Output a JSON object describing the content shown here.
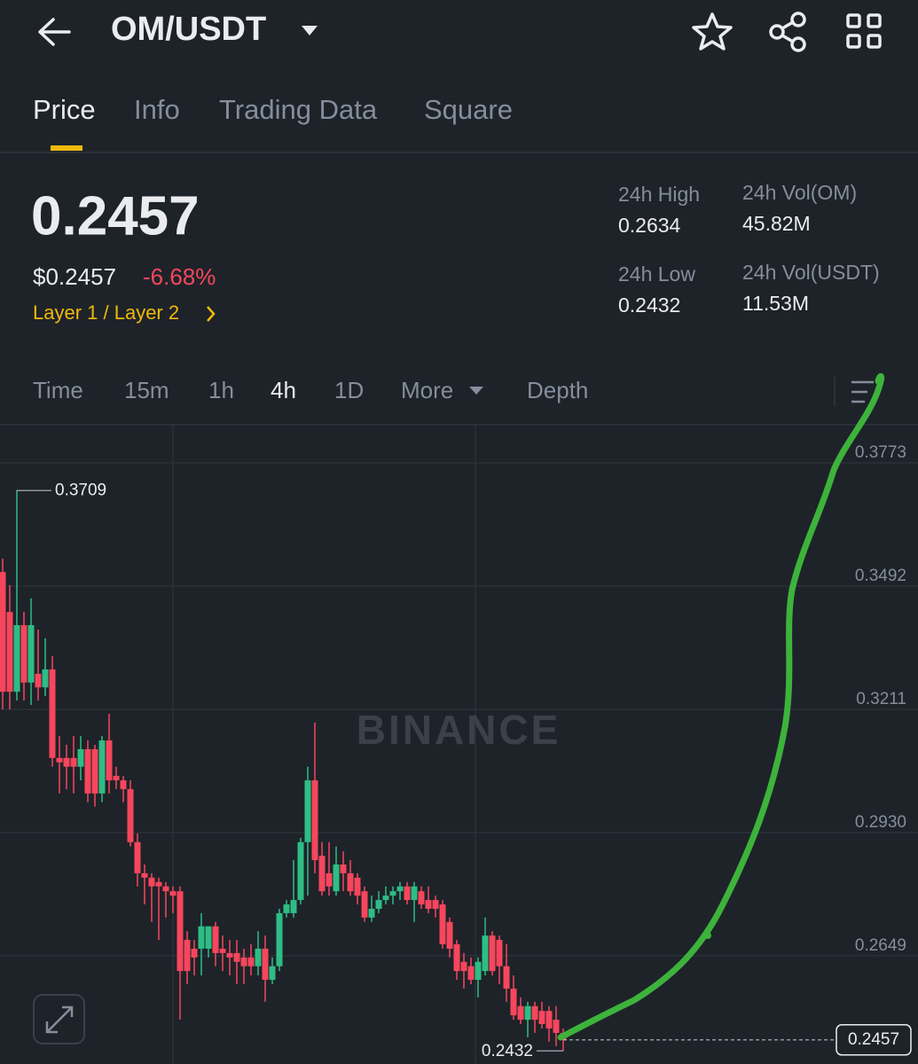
{
  "header": {
    "pair": "OM/USDT"
  },
  "tabs": [
    "Price",
    "Info",
    "Trading Data",
    "Square"
  ],
  "ticker": {
    "price": "0.2457",
    "usd_price": "$0.2457",
    "change": "-6.68%",
    "tag": "Layer 1 / Layer 2",
    "stats": [
      {
        "label": "24h High",
        "value": "0.2634"
      },
      {
        "label": "24h Vol(OM)",
        "value": "45.82M"
      },
      {
        "label": "24h Low",
        "value": "0.2432"
      },
      {
        "label": "24h Vol(USDT)",
        "value": "11.53M"
      }
    ]
  },
  "intervals": [
    "Time",
    "15m",
    "1h",
    "4h",
    "1D",
    "More",
    "Depth"
  ],
  "watermark": "BINANCE",
  "chart_data": {
    "type": "candlestick",
    "up_color": "#2ebd85",
    "down_color": "#f6465d",
    "grid": true,
    "ylim": [
      0.2402,
      0.3858
    ],
    "yticks": [
      0.3773,
      0.3492,
      0.3211,
      {
        "value": 0.293,
        "label": "0.2930"
      },
      0.2649
    ],
    "high_label": 0.3709,
    "low_label": 0.2432,
    "last_price": 0.2457,
    "open": [
      0.3524,
      0.3433,
      0.3251,
      0.3403,
      0.3272,
      0.3292,
      0.3261,
      0.3302,
      0.31,
      0.31,
      0.31,
      0.308,
      0.312,
      0.312,
      0.3019,
      0.314,
      0.3059,
      0.3049,
      0.3029,
      0.2908,
      0.2837,
      0.2827,
      0.2817,
      0.2807,
      0.2796,
      0.2796,
      0.2685,
      0.2665,
      0.2665,
      0.2665,
      0.2716,
      0.2665,
      0.2655,
      0.2655,
      0.2645,
      0.2645,
      0.2625,
      0.2665,
      0.2594,
      0.2625,
      0.2746,
      0.2746,
      0.2776,
      0.2908,
      0.3049,
      0.2877,
      0.2837,
      0.2796,
      0.2857,
      0.2837,
      0.2827,
      0.2796,
      0.2736,
      0.2756,
      0.2776,
      0.2786,
      0.2796,
      0.2807,
      0.2776,
      0.2796,
      0.2776,
      0.2776,
      0.2766,
      0.2726,
      0.2675,
      0.2635,
      0.2625,
      0.2594,
      0.2614,
      0.2695,
      0.2685,
      0.2625,
      0.2574,
      0.2534,
      0.2503,
      0.2534,
      0.2523,
      0.2523,
      0.2503,
      0.2473
    ],
    "high": [
      0.3555,
      0.3494,
      0.3709,
      0.3433,
      0.3464,
      0.3393,
      0.3373,
      0.3332,
      0.315,
      0.313,
      0.315,
      0.315,
      0.314,
      0.313,
      0.315,
      0.3201,
      0.308,
      0.3059,
      0.3049,
      0.2928,
      0.2857,
      0.2837,
      0.2827,
      0.2817,
      0.2807,
      0.2807,
      0.2705,
      0.2685,
      0.2746,
      0.2716,
      0.2726,
      0.2695,
      0.2685,
      0.2685,
      0.2665,
      0.2675,
      0.2705,
      0.2695,
      0.2645,
      0.2756,
      0.2776,
      0.2867,
      0.2918,
      0.308,
      0.3181,
      0.2908,
      0.2908,
      0.2898,
      0.2887,
      0.2867,
      0.2837,
      0.2807,
      0.2786,
      0.2796,
      0.2807,
      0.2807,
      0.2817,
      0.2817,
      0.2817,
      0.2807,
      0.2807,
      0.2786,
      0.2776,
      0.2736,
      0.2685,
      0.2655,
      0.2645,
      0.2645,
      0.2736,
      0.2705,
      0.2695,
      0.2675,
      0.2604,
      0.2554,
      0.2544,
      0.2544,
      0.2544,
      0.2534,
      0.2534,
      0.2483
    ],
    "low": [
      0.3211,
      0.3211,
      0.3231,
      0.3231,
      0.3221,
      0.3231,
      0.3241,
      0.308,
      0.3019,
      0.3029,
      0.3019,
      0.3049,
      0.2999,
      0.2989,
      0.2999,
      0.3019,
      0.3029,
      0.2999,
      0.2898,
      0.2807,
      0.2766,
      0.2726,
      0.2685,
      0.2736,
      0.2746,
      0.2503,
      0.2584,
      0.2604,
      0.2604,
      0.2645,
      0.2625,
      0.2614,
      0.2604,
      0.2584,
      0.2584,
      0.2604,
      0.2604,
      0.2544,
      0.2584,
      0.2614,
      0.2736,
      0.2736,
      0.2766,
      0.2786,
      0.2837,
      0.2786,
      0.2786,
      0.2786,
      0.2796,
      0.2786,
      0.2766,
      0.2726,
      0.2726,
      0.2746,
      0.2766,
      0.2766,
      0.2776,
      0.2766,
      0.2726,
      0.2756,
      0.2746,
      0.2736,
      0.2665,
      0.2645,
      0.2594,
      0.2574,
      0.2584,
      0.2554,
      0.2604,
      0.2604,
      0.2584,
      0.2544,
      0.2503,
      0.2493,
      0.2463,
      0.2473,
      0.2483,
      0.2453,
      0.2443,
      0.2432
    ],
    "close": [
      0.3251,
      0.3251,
      0.3403,
      0.3272,
      0.3403,
      0.3261,
      0.3302,
      0.31,
      0.309,
      0.308,
      0.308,
      0.312,
      0.3019,
      0.3019,
      0.314,
      0.3049,
      0.3049,
      0.3029,
      0.2908,
      0.2837,
      0.2827,
      0.2807,
      0.2807,
      0.2796,
      0.2786,
      0.2614,
      0.2614,
      0.2645,
      0.2716,
      0.2716,
      0.2655,
      0.2655,
      0.2645,
      0.2635,
      0.2625,
      0.2625,
      0.2665,
      0.2594,
      0.2625,
      0.2746,
      0.2766,
      0.2776,
      0.2908,
      0.3049,
      0.2867,
      0.2796,
      0.2807,
      0.2857,
      0.2837,
      0.2796,
      0.2786,
      0.2736,
      0.2756,
      0.2776,
      0.2786,
      0.2796,
      0.2807,
      0.2776,
      0.2807,
      0.2766,
      0.2756,
      0.2756,
      0.2675,
      0.2665,
      0.2614,
      0.2614,
      0.2594,
      0.2635,
      0.2695,
      0.2614,
      0.2625,
      0.2574,
      0.2513,
      0.2503,
      0.2534,
      0.2503,
      0.2493,
      0.2483,
      0.2473,
      0.2457
    ]
  }
}
